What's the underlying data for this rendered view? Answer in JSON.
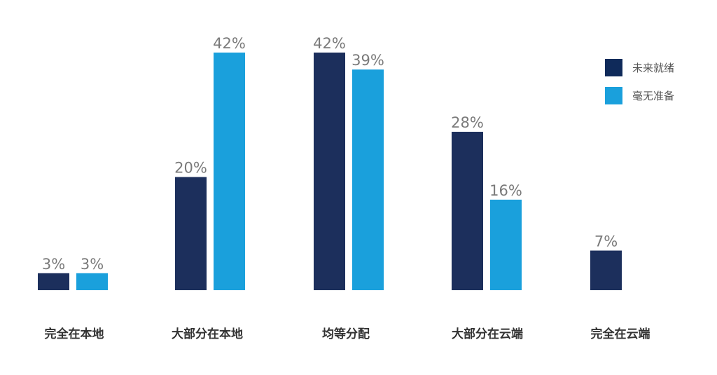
{
  "chart_data": {
    "type": "bar",
    "categories": [
      "完全在本地",
      "大部分在本地",
      "均等分配",
      "大部分在云端",
      "完全在云端"
    ],
    "series": [
      {
        "name": "未来就绪",
        "color": "#1c2f5c",
        "values": [
          3,
          20,
          42,
          28,
          7
        ],
        "labels": [
          "3%",
          "20%",
          "42%",
          "28%",
          "7%"
        ]
      },
      {
        "name": "毫无准备",
        "color": "#1aa0dc",
        "values": [
          3,
          42,
          39,
          16,
          null
        ],
        "labels": [
          "3%",
          "42%",
          "39%",
          "16%",
          null
        ]
      }
    ],
    "ylim": [
      0,
      42
    ],
    "legend_position": "top-right",
    "grid": false,
    "legend_colors": {
      "series_0": "#0f2a5a",
      "series_1": "#1aa0dc"
    }
  }
}
